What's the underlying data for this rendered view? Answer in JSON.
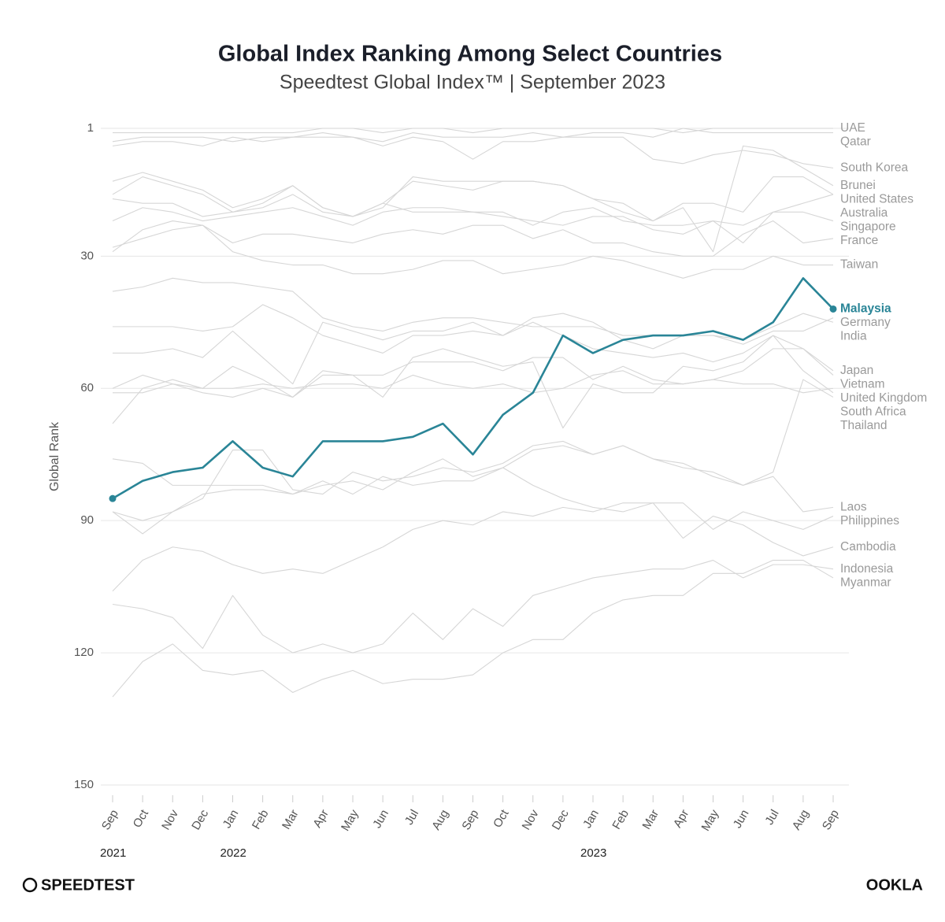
{
  "chart_data": {
    "type": "line",
    "title": "Global Index Ranking Among Select Countries",
    "subtitle": "Speedtest Global Index™ | September 2023",
    "y_label": "Global Rank",
    "brand_left": "SPEEDTEST",
    "brand_right": "OOKLA",
    "categories": [
      "Sep",
      "Oct",
      "Nov",
      "Dec",
      "Jan",
      "Feb",
      "Mar",
      "Apr",
      "May",
      "Jun",
      "Jul",
      "Aug",
      "Sep",
      "Oct",
      "Nov",
      "Dec",
      "Jan",
      "Feb",
      "Mar",
      "Apr",
      "May",
      "Jun",
      "Jul",
      "Aug",
      "Sep"
    ],
    "years": [
      "2021",
      null,
      null,
      null,
      "2022",
      null,
      null,
      null,
      null,
      null,
      null,
      null,
      null,
      null,
      null,
      null,
      "2023",
      null,
      null,
      null,
      null,
      null,
      null,
      null,
      null
    ],
    "ylim": [
      150,
      1
    ],
    "yticks": [
      1,
      30,
      60,
      90,
      120,
      150
    ],
    "grid": true,
    "series": [
      {
        "name": "UAE",
        "color": "#d6d6d6",
        "values": [
          2,
          2,
          2,
          2,
          2,
          2,
          2,
          1,
          1,
          2,
          1,
          1,
          2,
          1,
          1,
          1,
          1,
          1,
          1,
          2,
          1,
          1,
          1,
          1,
          1
        ]
      },
      {
        "name": "Qatar",
        "color": "#d6d6d6",
        "values": [
          4,
          3,
          3,
          3,
          4,
          3,
          3,
          3,
          3,
          4,
          2,
          3,
          3,
          3,
          2,
          3,
          2,
          2,
          3,
          1,
          2,
          2,
          2,
          2,
          2
        ]
      },
      {
        "name": "South Korea",
        "color": "#d6d6d6",
        "values": [
          5,
          4,
          4,
          5,
          3,
          4,
          3,
          2,
          3,
          5,
          3,
          4,
          8,
          4,
          4,
          3,
          3,
          3,
          8,
          9,
          7,
          6,
          7,
          9,
          10
        ]
      },
      {
        "name": "Brunei",
        "color": "#d6d6d6",
        "values": [
          16,
          12,
          14,
          16,
          20,
          18,
          14,
          19,
          21,
          18,
          13,
          14,
          15,
          13,
          13,
          14,
          17,
          20,
          22,
          19,
          29,
          5,
          6,
          10,
          14
        ]
      },
      {
        "name": "United States",
        "color": "#d6d6d6",
        "values": [
          13,
          11,
          13,
          15,
          19,
          17,
          14,
          19,
          21,
          19,
          12,
          13,
          13,
          13,
          13,
          14,
          17,
          18,
          22,
          18,
          18,
          20,
          12,
          12,
          16
        ]
      },
      {
        "name": "Australia",
        "color": "#d6d6d6",
        "values": [
          17,
          18,
          18,
          21,
          20,
          19,
          16,
          20,
          21,
          18,
          20,
          20,
          20,
          20,
          23,
          20,
          19,
          22,
          23,
          23,
          22,
          23,
          20,
          18,
          16
        ]
      },
      {
        "name": "Singapore",
        "color": "#d6d6d6",
        "values": [
          22,
          19,
          20,
          22,
          21,
          20,
          19,
          21,
          23,
          20,
          19,
          19,
          20,
          21,
          22,
          23,
          21,
          21,
          24,
          25,
          22,
          27,
          20,
          20,
          22
        ]
      },
      {
        "name": "France",
        "color": "#d6d6d6",
        "values": [
          29,
          24,
          22,
          23,
          27,
          25,
          25,
          26,
          27,
          25,
          24,
          25,
          23,
          23,
          26,
          24,
          27,
          27,
          29,
          30,
          30,
          25,
          22,
          27,
          26
        ]
      },
      {
        "name": "Taiwan",
        "color": "#d6d6d6",
        "values": [
          28,
          26,
          24,
          23,
          29,
          31,
          32,
          32,
          34,
          34,
          33,
          31,
          31,
          34,
          33,
          32,
          30,
          31,
          33,
          35,
          33,
          33,
          30,
          32,
          32
        ]
      },
      {
        "name": "Malaysia",
        "color": "#2a8597",
        "emphasis": true,
        "values": [
          85,
          81,
          79,
          78,
          72,
          78,
          80,
          72,
          72,
          72,
          71,
          68,
          75,
          66,
          61,
          48,
          52,
          49,
          48,
          48,
          47,
          49,
          45,
          35,
          42
        ]
      },
      {
        "name": "Germany",
        "color": "#d6d6d6",
        "values": [
          38,
          37,
          35,
          36,
          36,
          37,
          38,
          44,
          46,
          47,
          45,
          44,
          44,
          45,
          46,
          46,
          46,
          48,
          48,
          48,
          48,
          50,
          47,
          47,
          44
        ]
      },
      {
        "name": "India",
        "color": "#d6d6d6",
        "values": [
          52,
          52,
          51,
          53,
          47,
          53,
          59,
          45,
          47,
          49,
          47,
          47,
          45,
          48,
          44,
          43,
          45,
          49,
          51,
          48,
          48,
          49,
          46,
          43,
          45
        ]
      },
      {
        "name": "Japan",
        "color": "#d6d6d6",
        "values": [
          46,
          46,
          46,
          47,
          46,
          41,
          44,
          48,
          50,
          52,
          48,
          48,
          47,
          48,
          45,
          48,
          51,
          52,
          53,
          52,
          54,
          52,
          48,
          51,
          56
        ]
      },
      {
        "name": "Vietnam",
        "color": "#d6d6d6",
        "values": [
          61,
          61,
          59,
          61,
          62,
          60,
          62,
          57,
          57,
          57,
          54,
          54,
          54,
          56,
          53,
          53,
          58,
          55,
          58,
          59,
          58,
          56,
          51,
          51,
          57
        ]
      },
      {
        "name": "United Kingdom",
        "color": "#d6d6d6",
        "values": [
          60,
          57,
          59,
          60,
          60,
          59,
          60,
          59,
          59,
          60,
          57,
          59,
          60,
          59,
          61,
          60,
          57,
          56,
          59,
          59,
          58,
          59,
          59,
          61,
          60
        ]
      },
      {
        "name": "South Africa",
        "color": "#d6d6d6",
        "values": [
          68,
          60,
          58,
          60,
          55,
          58,
          62,
          56,
          57,
          62,
          53,
          51,
          53,
          55,
          54,
          69,
          59,
          61,
          61,
          55,
          56,
          54,
          48,
          56,
          61
        ]
      },
      {
        "name": "Thailand",
        "color": "#d6d6d6",
        "values": [
          76,
          77,
          82,
          82,
          82,
          82,
          84,
          82,
          81,
          83,
          79,
          76,
          80,
          78,
          74,
          73,
          75,
          73,
          76,
          78,
          79,
          82,
          79,
          58,
          62
        ]
      },
      {
        "name": "Laos",
        "color": "#d6d6d6",
        "values": [
          88,
          93,
          88,
          85,
          74,
          74,
          83,
          84,
          79,
          81,
          80,
          78,
          79,
          77,
          73,
          72,
          75,
          73,
          76,
          77,
          80,
          82,
          80,
          88,
          87
        ]
      },
      {
        "name": "Philippines",
        "color": "#d6d6d6",
        "values": [
          88,
          90,
          88,
          84,
          83,
          83,
          84,
          81,
          84,
          80,
          82,
          81,
          81,
          78,
          82,
          85,
          87,
          88,
          86,
          86,
          92,
          88,
          90,
          92,
          89
        ]
      },
      {
        "name": "Cambodia",
        "color": "#d6d6d6",
        "values": [
          106,
          99,
          96,
          97,
          100,
          102,
          101,
          102,
          99,
          96,
          92,
          90,
          91,
          88,
          89,
          87,
          88,
          86,
          86,
          94,
          89,
          91,
          95,
          98,
          96
        ]
      },
      {
        "name": "Indonesia",
        "color": "#d6d6d6",
        "values": [
          109,
          110,
          112,
          119,
          107,
          116,
          120,
          118,
          120,
          118,
          111,
          117,
          110,
          114,
          107,
          105,
          103,
          102,
          101,
          101,
          99,
          103,
          100,
          100,
          101
        ]
      },
      {
        "name": "Myanmar",
        "color": "#d6d6d6",
        "values": [
          130,
          122,
          118,
          124,
          125,
          124,
          129,
          126,
          124,
          127,
          126,
          126,
          125,
          120,
          117,
          117,
          111,
          108,
          107,
          107,
          102,
          102,
          99,
          99,
          103
        ]
      }
    ]
  }
}
